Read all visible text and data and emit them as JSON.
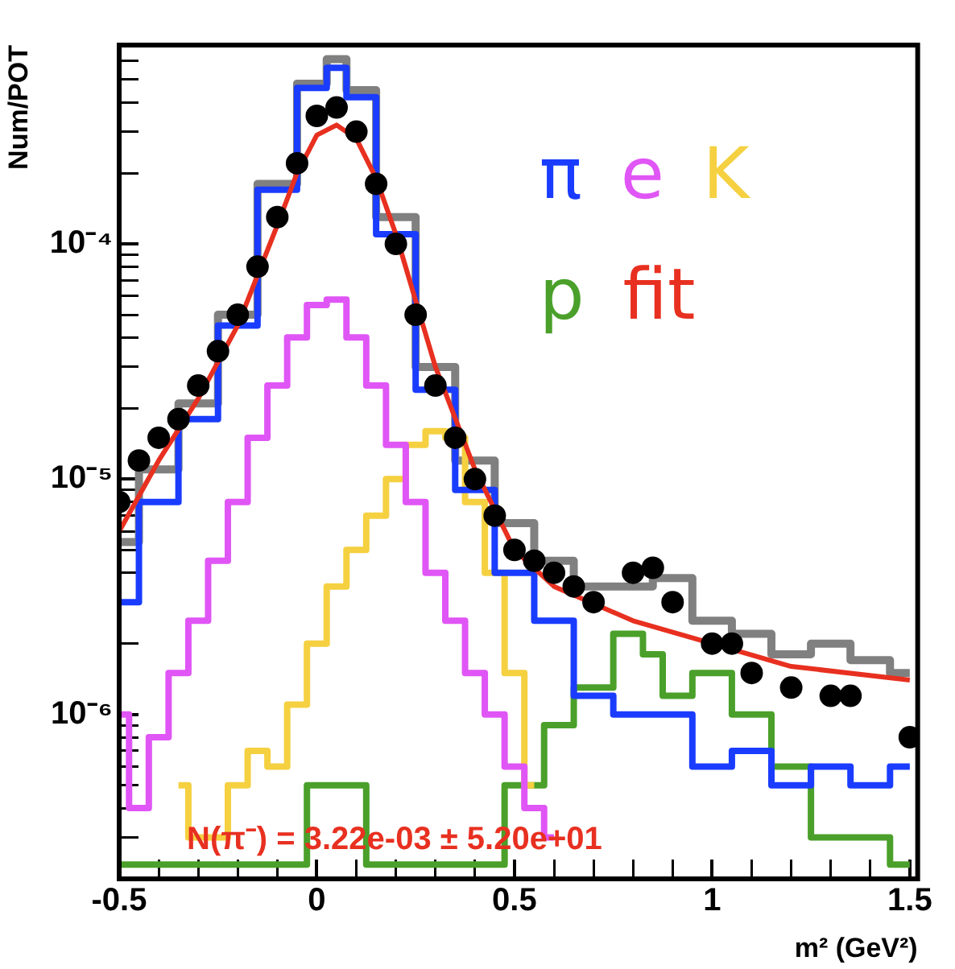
{
  "chart_data": {
    "type": "step",
    "xlabel": "m² (GeV²)",
    "ylabel": "Num/POT",
    "log": "y",
    "legend": "top right",
    "grid": false,
    "xlim": [
      -0.5,
      1.52
    ],
    "xticks": [
      -0.5,
      {
        "value": -0.4,
        "label": null
      },
      {
        "value": -0.3,
        "label": null
      },
      {
        "value": -0.2,
        "label": null
      },
      {
        "value": -0.1,
        "label": null
      },
      0,
      {
        "value": 0.1,
        "label": null
      },
      {
        "value": 0.2,
        "label": null
      },
      {
        "value": 0.3,
        "label": null
      },
      {
        "value": 0.4,
        "label": null
      },
      0.5,
      {
        "value": 0.6,
        "label": null
      },
      {
        "value": 0.7,
        "label": null
      },
      {
        "value": 0.8,
        "label": null
      },
      {
        "value": 0.9,
        "label": null
      },
      1,
      {
        "value": 1.1,
        "label": null
      },
      {
        "value": 1.2,
        "label": null
      },
      {
        "value": 1.3,
        "label": null
      },
      {
        "value": 1.4,
        "label": null
      },
      1.5
    ],
    "ylim": [
      2e-07,
      0.0007
    ],
    "yticks": [
      {
        "value": 3e-07,
        "label": null
      },
      {
        "value": 4e-07,
        "label": null
      },
      {
        "value": 5e-07,
        "label": null
      },
      {
        "value": 6e-07,
        "label": null
      },
      {
        "value": 7e-07,
        "label": null
      },
      {
        "value": 8e-07,
        "label": null
      },
      {
        "value": 9e-07,
        "label": null
      },
      {
        "value": 1e-06,
        "label": "10⁻⁶"
      },
      {
        "value": 2e-06,
        "label": null
      },
      {
        "value": 3e-06,
        "label": null
      },
      {
        "value": 4e-06,
        "label": null
      },
      {
        "value": 5e-06,
        "label": null
      },
      {
        "value": 6e-06,
        "label": null
      },
      {
        "value": 7e-06,
        "label": null
      },
      {
        "value": 8e-06,
        "label": null
      },
      {
        "value": 9e-06,
        "label": null
      },
      {
        "value": 1e-05,
        "label": "10⁻⁵"
      },
      {
        "value": 2e-05,
        "label": null
      },
      {
        "value": 3e-05,
        "label": null
      },
      {
        "value": 4e-05,
        "label": null
      },
      {
        "value": 5e-05,
        "label": null
      },
      {
        "value": 6e-05,
        "label": null
      },
      {
        "value": 7e-05,
        "label": null
      },
      {
        "value": 8e-05,
        "label": null
      },
      {
        "value": 9e-05,
        "label": null
      },
      {
        "value": 0.0001,
        "label": "10⁻⁴"
      },
      {
        "value": 0.0002,
        "label": null
      },
      {
        "value": 0.0003,
        "label": null
      },
      {
        "value": 0.0004,
        "label": null
      },
      {
        "value": 0.0005,
        "label": null
      },
      {
        "value": 0.0006,
        "label": null
      }
    ],
    "series": [
      {
        "name": "π",
        "color": "#1a3cff",
        "x": [
          -0.5,
          -0.4,
          -0.3,
          -0.2,
          -0.1,
          0,
          0.05,
          0.1,
          0.2,
          0.3,
          0.4,
          0.5,
          0.6,
          0.7,
          0.8,
          0.9,
          1.0,
          1.1,
          1.2,
          1.3,
          1.4,
          1.5
        ],
        "values": [
          3e-06,
          8e-06,
          1.8e-05,
          4.5e-05,
          0.00017,
          0.00046,
          0.00056,
          0.00042,
          0.00011,
          2.4e-05,
          9e-06,
          4e-06,
          2.5e-06,
          1.2e-06,
          1e-06,
          1e-06,
          6e-07,
          7e-07,
          5e-07,
          6e-07,
          5e-07,
          6e-07
        ]
      },
      {
        "name": "e",
        "color": "#e055f5",
        "x": [
          -0.5,
          -0.45,
          -0.4,
          -0.35,
          -0.3,
          -0.25,
          -0.2,
          -0.15,
          -0.1,
          -0.05,
          0,
          0.05,
          0.1,
          0.15,
          0.2,
          0.25,
          0.3,
          0.35,
          0.4,
          0.45,
          0.5,
          0.55,
          0.6
        ],
        "values": [
          1e-06,
          4e-07,
          8e-07,
          1.5e-06,
          2.5e-06,
          4.5e-06,
          8e-06,
          1.5e-05,
          2.5e-05,
          4e-05,
          5.5e-05,
          5.8e-05,
          4e-05,
          2.5e-05,
          1.4e-05,
          8e-06,
          4e-06,
          2.5e-06,
          1.5e-06,
          1e-06,
          6e-07,
          4e-07,
          3e-07
        ]
      },
      {
        "name": "K",
        "color": "#f5d040",
        "x": [
          -0.35,
          -0.3,
          -0.25,
          -0.2,
          -0.15,
          -0.1,
          -0.05,
          0,
          0.05,
          0.1,
          0.15,
          0.2,
          0.25,
          0.3,
          0.35,
          0.4,
          0.45,
          0.5,
          0.55
        ],
        "values": [
          5e-07,
          3e-07,
          3e-07,
          5e-07,
          7e-07,
          6e-07,
          1.1e-06,
          2e-06,
          3.5e-06,
          5e-06,
          7e-06,
          1e-05,
          1.4e-05,
          1.6e-05,
          1.5e-05,
          8e-06,
          4e-06,
          1.5e-06,
          5e-07
        ]
      },
      {
        "name": "p",
        "color": "#4aa02a",
        "x": [
          -0.5,
          -0.3,
          -0.05,
          0,
          0.05,
          0.1,
          0.15,
          0.4,
          0.55,
          0.6,
          0.7,
          0.8,
          0.85,
          0.9,
          1.0,
          1.1,
          1.2,
          1.3,
          1.4,
          1.5
        ],
        "values": [
          2.3e-07,
          2.3e-07,
          2.3e-07,
          5e-07,
          5e-07,
          5e-07,
          2.3e-07,
          2.3e-07,
          5e-07,
          9e-07,
          1.3e-06,
          2.2e-06,
          1.8e-06,
          1.2e-06,
          1.5e-06,
          1e-06,
          6e-07,
          3e-07,
          3e-07,
          2.3e-07
        ]
      },
      {
        "name": "fit",
        "type": "line",
        "color": "#e83020",
        "x": [
          -0.5,
          -0.4,
          -0.3,
          -0.2,
          -0.1,
          -0.05,
          0,
          0.05,
          0.1,
          0.15,
          0.2,
          0.3,
          0.4,
          0.5,
          0.6,
          0.8,
          1.0,
          1.2,
          1.5
        ],
        "values": [
          6e-06,
          1.2e-05,
          2.2e-05,
          4.5e-05,
          0.00012,
          0.0002,
          0.00029,
          0.00032,
          0.00028,
          0.00019,
          0.00011,
          3e-05,
          1.1e-05,
          5e-06,
          3.5e-06,
          2.5e-06,
          2e-06,
          1.6e-06,
          1.4e-06
        ]
      },
      {
        "color": "#808080",
        "x": [
          -0.5,
          -0.4,
          -0.3,
          -0.2,
          -0.1,
          0,
          0.05,
          0.1,
          0.2,
          0.3,
          0.4,
          0.5,
          0.6,
          0.7,
          0.8,
          0.9,
          1.0,
          1.1,
          1.2,
          1.3,
          1.4,
          1.5
        ],
        "values": [
          5.4e-06,
          1.1e-05,
          2.1e-05,
          5e-05,
          0.00018,
          0.00048,
          0.00061,
          0.00045,
          0.00013,
          3e-05,
          1.2e-05,
          6.5e-06,
          4.5e-06,
          3.5e-06,
          3.5e-06,
          3.8e-06,
          2.5e-06,
          2.2e-06,
          1.8e-06,
          2e-06,
          1.7e-06,
          1.5e-06
        ]
      },
      {
        "type": "scatter",
        "marker": "circle",
        "color": "#000000",
        "x": [
          -0.5,
          -0.45,
          -0.4,
          -0.35,
          -0.3,
          -0.25,
          -0.2,
          -0.15,
          -0.1,
          -0.05,
          0,
          0.05,
          0.1,
          0.15,
          0.2,
          0.25,
          0.3,
          0.35,
          0.4,
          0.45,
          0.5,
          0.55,
          0.6,
          0.65,
          0.7,
          0.8,
          0.85,
          0.9,
          1.0,
          1.05,
          1.1,
          1.2,
          1.3,
          1.35,
          1.5
        ],
        "values": [
          8e-06,
          1.2e-05,
          1.5e-05,
          1.8e-05,
          2.5e-05,
          3.5e-05,
          5e-05,
          8e-05,
          0.00013,
          0.00022,
          0.00035,
          0.00038,
          0.0003,
          0.00018,
          0.0001,
          5e-05,
          2.5e-05,
          1.5e-05,
          1e-05,
          7e-06,
          5e-06,
          4.5e-06,
          4e-06,
          3.5e-06,
          3e-06,
          4e-06,
          4.2e-06,
          3e-06,
          2e-06,
          2e-06,
          1.5e-06,
          1.3e-06,
          1.2e-06,
          1.2e-06,
          8e-07
        ]
      }
    ],
    "annotations": [
      "N(π⁻) = 3.22e-03 ± 5.20e+01"
    ]
  }
}
